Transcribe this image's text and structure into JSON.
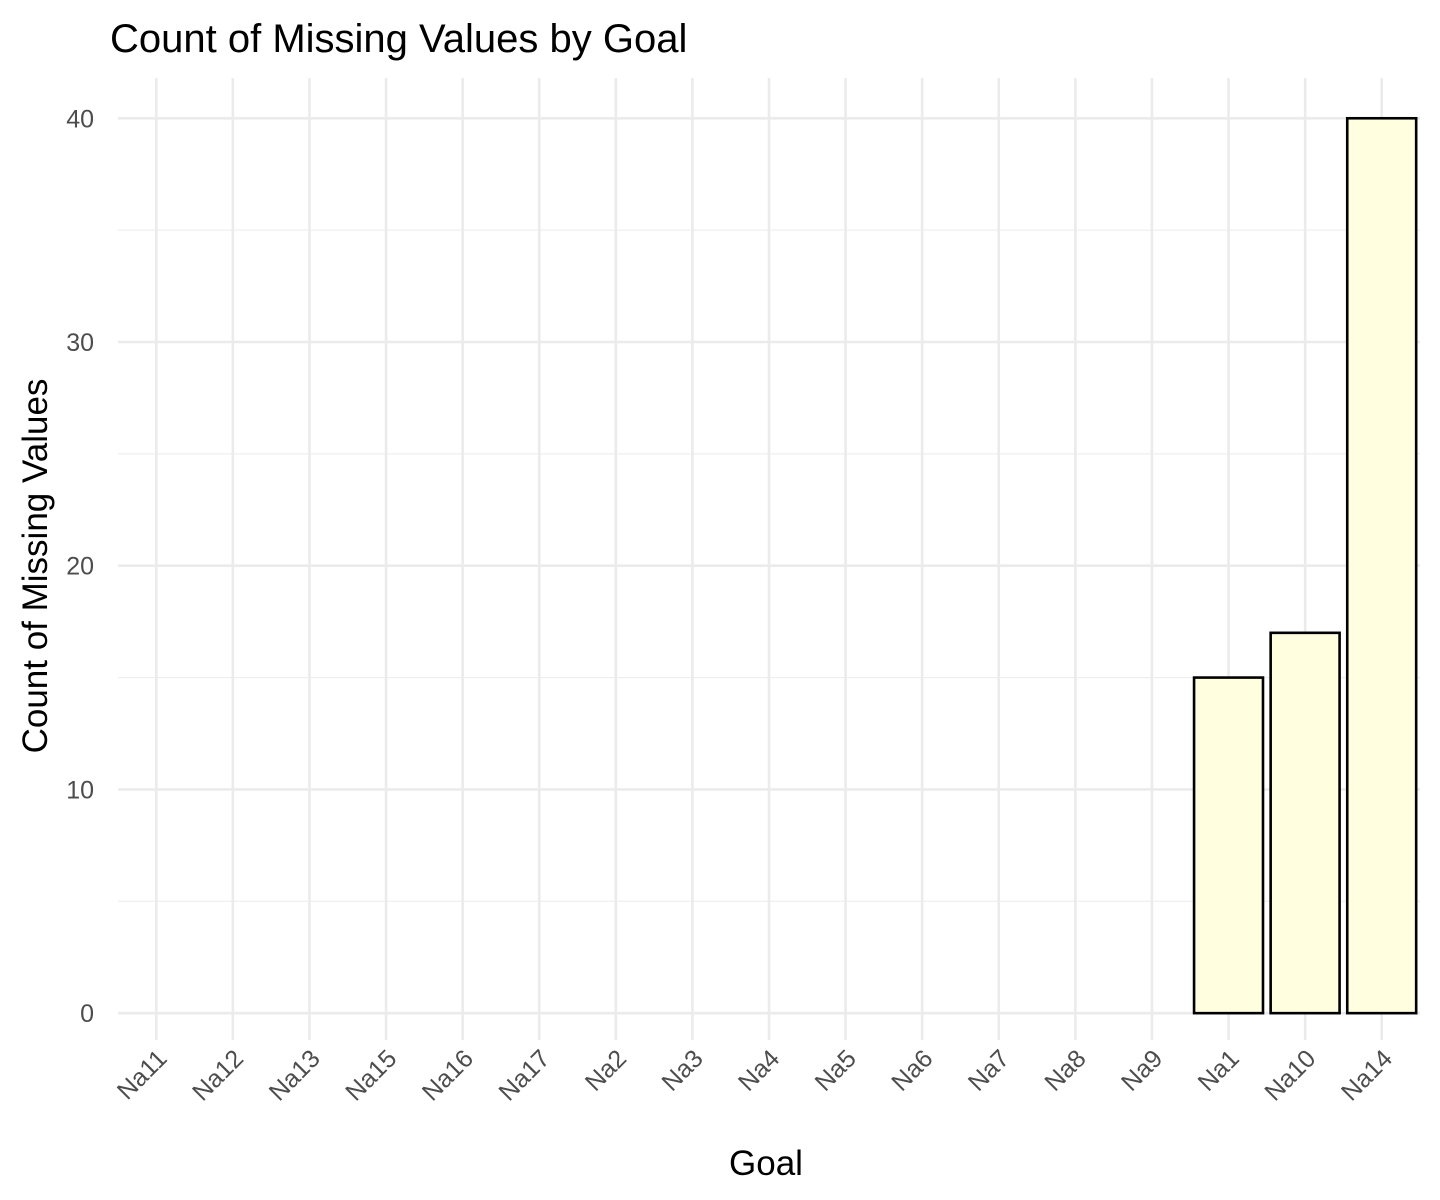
{
  "chart_data": {
    "type": "bar",
    "title": "Count of Missing Values by Goal",
    "xlabel": "Goal",
    "ylabel": "Count of Missing Values",
    "categories": [
      "Na11",
      "Na12",
      "Na13",
      "Na15",
      "Na16",
      "Na17",
      "Na2",
      "Na3",
      "Na4",
      "Na5",
      "Na6",
      "Na7",
      "Na8",
      "Na9",
      "Na1",
      "Na10",
      "Na14"
    ],
    "values": [
      0,
      0,
      0,
      0,
      0,
      0,
      0,
      0,
      0,
      0,
      0,
      0,
      0,
      0,
      15,
      17,
      40
    ],
    "yticks": [
      0,
      10,
      20,
      30,
      40
    ],
    "ylim": [
      -1.2,
      41.8
    ],
    "grid": true,
    "legend": "none",
    "bar_fill": "#ffffe0",
    "bar_stroke": "#000000",
    "grid_color": "#ebebeb",
    "tick_label_color": "#4d4d4d"
  }
}
